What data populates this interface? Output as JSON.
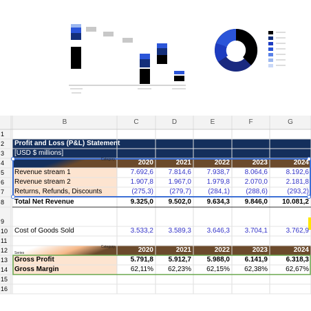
{
  "sheet": {
    "columns": [
      "B",
      "C",
      "D",
      "E",
      "F",
      "G"
    ],
    "row_numbers": [
      "1",
      "2",
      "3",
      "4",
      "5",
      "6",
      "7",
      "8",
      "9",
      "10",
      "11",
      "12",
      "13",
      "14",
      "15",
      "16"
    ],
    "title": "Profit and Loss (P&L) Statement",
    "subtitle": "[USD $ millions]",
    "header_1": {
      "category": "Category",
      "years": [
        "2020",
        "2021",
        "2022",
        "2023",
        "2024"
      ]
    },
    "revenue_lines": [
      {
        "label": "Revenue stream 1",
        "values": [
          "7.692,6",
          "7.814,6",
          "7.938,7",
          "8.064,6",
          "8.192,6"
        ]
      },
      {
        "label": "Revenue stream 2",
        "values": [
          "1.907,8",
          "1.967,0",
          "1.979,8",
          "2.070,0",
          "2.181,8"
        ]
      },
      {
        "label": "Returns, Refunds, Discounts",
        "values": [
          "(275,3)",
          "(279,7)",
          "(284,1)",
          "(288,6)",
          "(293,2)"
        ]
      }
    ],
    "total": {
      "label": "Total Net Revenue",
      "values": [
        "9.325,0",
        "9.502,0",
        "9.634,3",
        "9.846,0",
        "10.081,2"
      ]
    },
    "cogs": {
      "label": "Cost of Goods Sold",
      "values": [
        "3.533,2",
        "3.589,3",
        "3.646,3",
        "3.704,1",
        "3.762,9"
      ]
    },
    "header_2": {
      "series": "Series",
      "category": "Category",
      "years": [
        "2020",
        "2021",
        "2022",
        "2023",
        "2024"
      ]
    },
    "gross_profit": {
      "label": "Gross Profit",
      "values": [
        "5.791,8",
        "5.912,7",
        "5.988,0",
        "6.141,9",
        "6.318,3"
      ]
    },
    "gross_margin": {
      "label": "Gross Margin",
      "values": [
        "62,11%",
        "62,23%",
        "62,15%",
        "62,38%",
        "62,67%"
      ]
    }
  }
}
